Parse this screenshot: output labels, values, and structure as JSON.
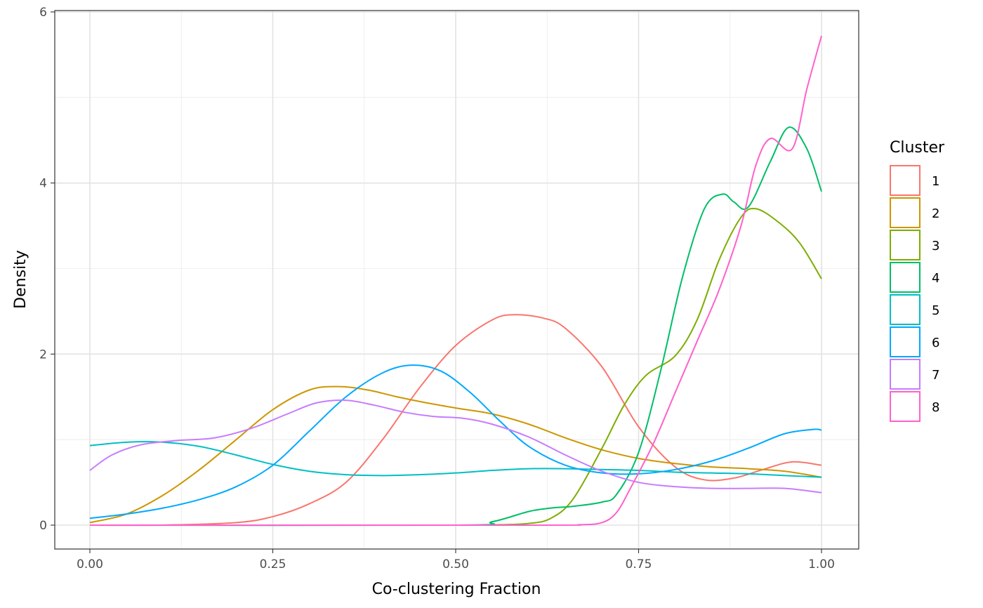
{
  "chart_data": {
    "type": "line",
    "title": "",
    "xlabel": "Co-clustering Fraction",
    "ylabel": "Density",
    "xlim": [
      -0.1,
      2.0
    ],
    "ylim": [
      -0.3,
      6.0
    ],
    "x_ticks": [
      0,
      0.25,
      0.5,
      0.75,
      1
    ],
    "x_tick_labels": [
      "0.00",
      "0.25",
      "0.50",
      "0.75",
      "1.00"
    ],
    "y_ticks": [
      0,
      2,
      4,
      6
    ],
    "y_tick_labels": [
      "0",
      "2",
      "4",
      "6"
    ],
    "grid": true,
    "legend": {
      "title": "Cluster",
      "position": "right"
    },
    "series": [
      {
        "name": "1",
        "color": "#F8766D",
        "points": [
          [
            0,
            0
          ],
          [
            0.1,
            0.001
          ],
          [
            0.2,
            0.03
          ],
          [
            0.25,
            0.1
          ],
          [
            0.3,
            0.25
          ],
          [
            0.35,
            0.5
          ],
          [
            0.4,
            1.0
          ],
          [
            0.45,
            1.6
          ],
          [
            0.5,
            2.1
          ],
          [
            0.55,
            2.4
          ],
          [
            0.58,
            2.46
          ],
          [
            0.62,
            2.42
          ],
          [
            0.65,
            2.3
          ],
          [
            0.7,
            1.85
          ],
          [
            0.75,
            1.15
          ],
          [
            0.8,
            0.68
          ],
          [
            0.84,
            0.53
          ],
          [
            0.88,
            0.55
          ],
          [
            0.92,
            0.65
          ],
          [
            0.96,
            0.74
          ],
          [
            1.0,
            0.7
          ]
        ]
      },
      {
        "name": "2",
        "color": "#CD9600",
        "points": [
          [
            0,
            0.03
          ],
          [
            0.05,
            0.13
          ],
          [
            0.1,
            0.35
          ],
          [
            0.15,
            0.65
          ],
          [
            0.2,
            1.0
          ],
          [
            0.25,
            1.35
          ],
          [
            0.3,
            1.58
          ],
          [
            0.34,
            1.62
          ],
          [
            0.38,
            1.58
          ],
          [
            0.42,
            1.5
          ],
          [
            0.46,
            1.43
          ],
          [
            0.5,
            1.37
          ],
          [
            0.55,
            1.3
          ],
          [
            0.6,
            1.18
          ],
          [
            0.65,
            1.02
          ],
          [
            0.7,
            0.88
          ],
          [
            0.75,
            0.78
          ],
          [
            0.8,
            0.72
          ],
          [
            0.85,
            0.68
          ],
          [
            0.9,
            0.66
          ],
          [
            0.95,
            0.63
          ],
          [
            1.0,
            0.56
          ]
        ]
      },
      {
        "name": "3",
        "color": "#7CAE00",
        "points": [
          [
            0,
            0
          ],
          [
            0.5,
            0
          ],
          [
            0.55,
            0.003
          ],
          [
            0.6,
            0.02
          ],
          [
            0.63,
            0.08
          ],
          [
            0.66,
            0.3
          ],
          [
            0.7,
            0.9
          ],
          [
            0.73,
            1.4
          ],
          [
            0.76,
            1.75
          ],
          [
            0.8,
            1.98
          ],
          [
            0.83,
            2.4
          ],
          [
            0.86,
            3.1
          ],
          [
            0.89,
            3.6
          ],
          [
            0.91,
            3.7
          ],
          [
            0.94,
            3.55
          ],
          [
            0.97,
            3.3
          ],
          [
            1.0,
            2.88
          ]
        ]
      },
      {
        "name": "4",
        "color": "#00BE67",
        "points": [
          [
            0,
            0
          ],
          [
            0.5,
            0
          ],
          [
            0.55,
            0.04
          ],
          [
            0.6,
            0.16
          ],
          [
            0.63,
            0.2
          ],
          [
            0.66,
            0.22
          ],
          [
            0.7,
            0.27
          ],
          [
            0.72,
            0.36
          ],
          [
            0.75,
            0.85
          ],
          [
            0.78,
            1.8
          ],
          [
            0.81,
            2.9
          ],
          [
            0.84,
            3.7
          ],
          [
            0.865,
            3.87
          ],
          [
            0.88,
            3.78
          ],
          [
            0.9,
            3.72
          ],
          [
            0.93,
            4.25
          ],
          [
            0.955,
            4.65
          ],
          [
            0.98,
            4.4
          ],
          [
            1.0,
            3.9
          ]
        ]
      },
      {
        "name": "5",
        "color": "#00BFC4",
        "points": [
          [
            0,
            0.93
          ],
          [
            0.05,
            0.97
          ],
          [
            0.1,
            0.97
          ],
          [
            0.15,
            0.92
          ],
          [
            0.2,
            0.82
          ],
          [
            0.25,
            0.71
          ],
          [
            0.3,
            0.63
          ],
          [
            0.35,
            0.59
          ],
          [
            0.4,
            0.58
          ],
          [
            0.45,
            0.59
          ],
          [
            0.5,
            0.61
          ],
          [
            0.55,
            0.64
          ],
          [
            0.6,
            0.66
          ],
          [
            0.65,
            0.66
          ],
          [
            0.7,
            0.65
          ],
          [
            0.75,
            0.64
          ],
          [
            0.8,
            0.62
          ],
          [
            0.85,
            0.61
          ],
          [
            0.9,
            0.6
          ],
          [
            0.95,
            0.58
          ],
          [
            1.0,
            0.56
          ]
        ]
      },
      {
        "name": "6",
        "color": "#00A9FF",
        "points": [
          [
            0,
            0.08
          ],
          [
            0.05,
            0.13
          ],
          [
            0.1,
            0.2
          ],
          [
            0.15,
            0.3
          ],
          [
            0.2,
            0.45
          ],
          [
            0.25,
            0.7
          ],
          [
            0.3,
            1.1
          ],
          [
            0.35,
            1.5
          ],
          [
            0.4,
            1.78
          ],
          [
            0.44,
            1.87
          ],
          [
            0.48,
            1.8
          ],
          [
            0.52,
            1.55
          ],
          [
            0.56,
            1.22
          ],
          [
            0.6,
            0.92
          ],
          [
            0.65,
            0.7
          ],
          [
            0.7,
            0.61
          ],
          [
            0.75,
            0.6
          ],
          [
            0.8,
            0.65
          ],
          [
            0.85,
            0.75
          ],
          [
            0.9,
            0.9
          ],
          [
            0.95,
            1.07
          ],
          [
            0.99,
            1.12
          ],
          [
            1.0,
            1.11
          ]
        ]
      },
      {
        "name": "7",
        "color": "#C77CFF",
        "points": [
          [
            0,
            0.64
          ],
          [
            0.03,
            0.82
          ],
          [
            0.07,
            0.94
          ],
          [
            0.12,
            0.99
          ],
          [
            0.17,
            1.02
          ],
          [
            0.22,
            1.13
          ],
          [
            0.27,
            1.3
          ],
          [
            0.31,
            1.43
          ],
          [
            0.35,
            1.46
          ],
          [
            0.39,
            1.4
          ],
          [
            0.43,
            1.32
          ],
          [
            0.47,
            1.27
          ],
          [
            0.51,
            1.25
          ],
          [
            0.55,
            1.18
          ],
          [
            0.6,
            1.03
          ],
          [
            0.65,
            0.82
          ],
          [
            0.7,
            0.63
          ],
          [
            0.75,
            0.5
          ],
          [
            0.8,
            0.45
          ],
          [
            0.85,
            0.43
          ],
          [
            0.9,
            0.43
          ],
          [
            0.95,
            0.43
          ],
          [
            1.0,
            0.38
          ]
        ]
      },
      {
        "name": "8",
        "color": "#FF61CC",
        "points": [
          [
            0,
            0
          ],
          [
            0.6,
            0
          ],
          [
            0.67,
            0.005
          ],
          [
            0.7,
            0.03
          ],
          [
            0.72,
            0.15
          ],
          [
            0.74,
            0.45
          ],
          [
            0.77,
            0.95
          ],
          [
            0.8,
            1.55
          ],
          [
            0.83,
            2.15
          ],
          [
            0.86,
            2.75
          ],
          [
            0.89,
            3.5
          ],
          [
            0.91,
            4.2
          ],
          [
            0.93,
            4.52
          ],
          [
            0.96,
            4.4
          ],
          [
            0.98,
            5.1
          ],
          [
            1.0,
            5.72
          ]
        ]
      }
    ]
  }
}
